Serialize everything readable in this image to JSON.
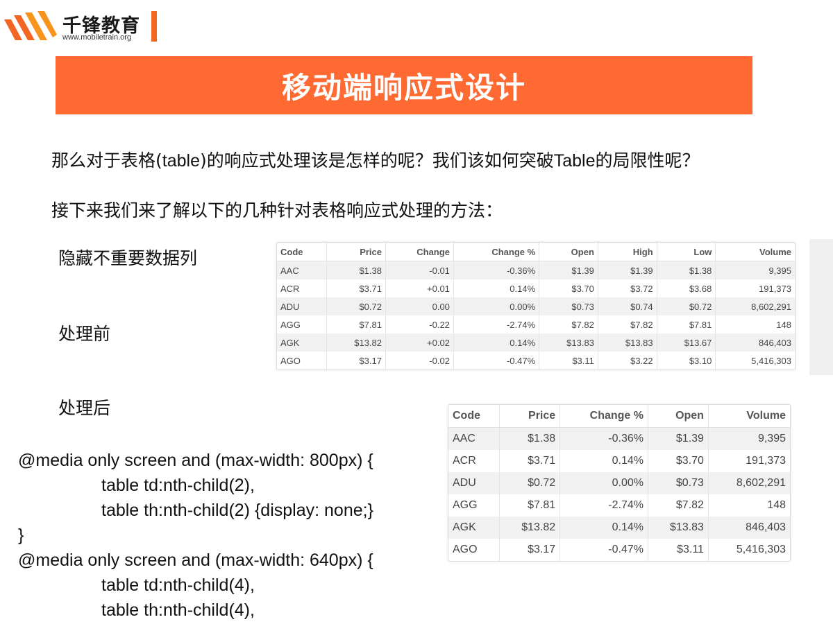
{
  "logo": {
    "name": "千锋教育",
    "url": "www.mobiletrain.org",
    "colors": [
      "#f26522",
      "#f7941d"
    ]
  },
  "banner": {
    "title": "移动端响应式设计",
    "color": "#ff6a33"
  },
  "paragraphs": {
    "p1_a": "那么对于表格(",
    "p1_b": "table",
    "p1_c": ")的响应式处理该是怎样的呢？我们该如何突破",
    "p1_d": "Table",
    "p1_e": "的局限性呢？",
    "p2": "接下来我们来了解以下的几种针对表格响应式处理的方法："
  },
  "labels": {
    "hide": "隐藏不重要数据列",
    "before": "处理前",
    "after": "处理后"
  },
  "table_before": {
    "headers": [
      "Code",
      "Price",
      "Change",
      "Change %",
      "Open",
      "High",
      "Low",
      "Volume"
    ],
    "rows": [
      [
        "AAC",
        "$1.38",
        "-0.01",
        "-0.36%",
        "$1.39",
        "$1.39",
        "$1.38",
        "9,395"
      ],
      [
        "ACR",
        "$3.71",
        "+0.01",
        "0.14%",
        "$3.70",
        "$3.72",
        "$3.68",
        "191,373"
      ],
      [
        "ADU",
        "$0.72",
        "0.00",
        "0.00%",
        "$0.73",
        "$0.74",
        "$0.72",
        "8,602,291"
      ],
      [
        "AGG",
        "$7.81",
        "-0.22",
        "-2.74%",
        "$7.82",
        "$7.82",
        "$7.81",
        "148"
      ],
      [
        "AGK",
        "$13.82",
        "+0.02",
        "0.14%",
        "$13.83",
        "$13.83",
        "$13.67",
        "846,403"
      ],
      [
        "AGO",
        "$3.17",
        "-0.02",
        "-0.47%",
        "$3.11",
        "$3.22",
        "$3.10",
        "5,416,303"
      ]
    ]
  },
  "table_after": {
    "headers": [
      "Code",
      "Price",
      "Change %",
      "Open",
      "Volume"
    ],
    "rows": [
      [
        "AAC",
        "$1.38",
        "-0.36%",
        "$1.39",
        "9,395"
      ],
      [
        "ACR",
        "$3.71",
        "0.14%",
        "$3.70",
        "191,373"
      ],
      [
        "ADU",
        "$0.72",
        "0.00%",
        "$0.73",
        "8,602,291"
      ],
      [
        "AGG",
        "$7.81",
        "-2.74%",
        "$7.82",
        "148"
      ],
      [
        "AGK",
        "$13.82",
        "0.14%",
        "$13.83",
        "846,403"
      ],
      [
        "AGO",
        "$3.17",
        "-0.47%",
        "$3.11",
        "5,416,303"
      ]
    ]
  },
  "code_lines": [
    {
      "text": "@media only screen and (max-width: 800px) {",
      "indent": false
    },
    {
      "text": "table td:nth-child(2),",
      "indent": true
    },
    {
      "text": "table th:nth-child(2) {display: none;}",
      "indent": true
    },
    {
      "text": "}",
      "indent": false
    },
    {
      "text": "@media only screen and (max-width: 640px) {",
      "indent": false
    },
    {
      "text": "table td:nth-child(4),",
      "indent": true
    },
    {
      "text": "table th:nth-child(4),",
      "indent": true
    }
  ]
}
